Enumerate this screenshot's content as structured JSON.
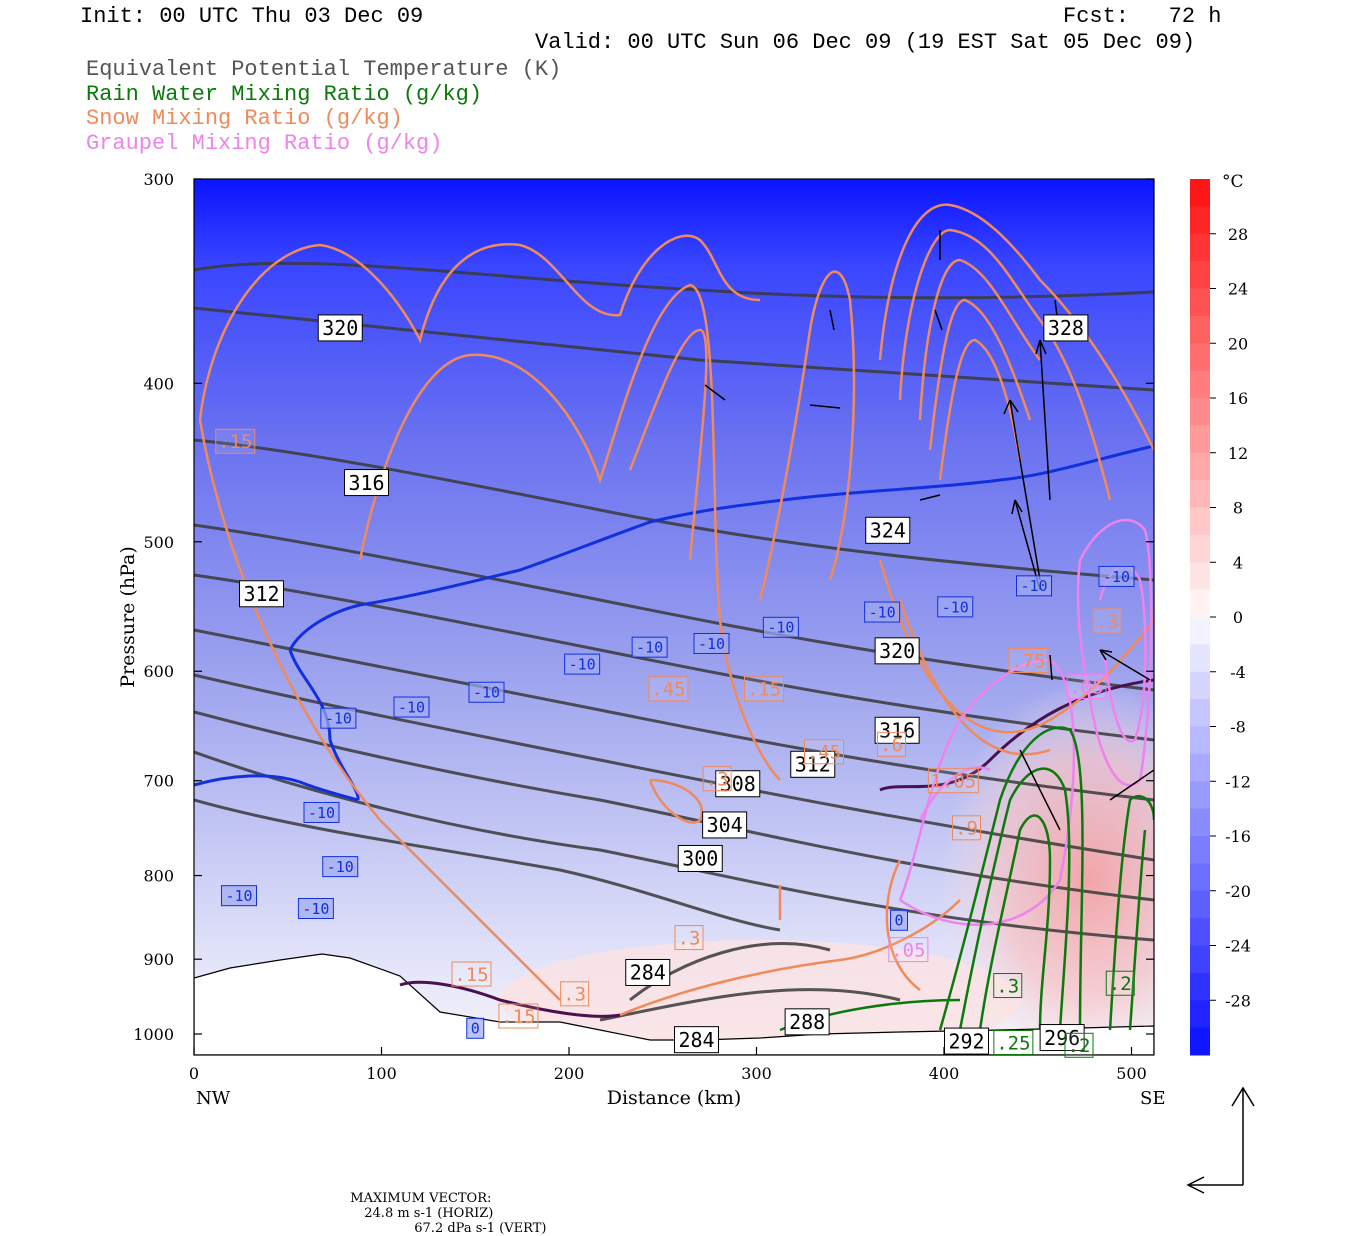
{
  "header": {
    "init": "Init: 00 UTC Thu 03 Dec 09",
    "fcst": "Fcst:   72 h",
    "valid": "Valid: 00 UTC Sun 06 Dec 09 (19 EST Sat 05 Dec 09)",
    "fields": [
      {
        "text": "Equivalent Potential Temperature (K)",
        "color": "#555555"
      },
      {
        "text": "Rain Water Mixing Ratio (g/kg)",
        "color": "#0a7a0a"
      },
      {
        "text": "Snow Mixing Ratio (g/kg)",
        "color": "#f08a5a"
      },
      {
        "text": "Graupel Mixing Ratio (g/kg)",
        "color": "#ee82ee"
      }
    ]
  },
  "footer": {
    "label": "MAXIMUM VECTOR:",
    "horiz": "24.8 m s-1 (HORIZ)",
    "vert": "67.2 dPa s-1 (VERT)"
  },
  "chart_data": {
    "type": "cross-section",
    "xlabel": "Distance (km)",
    "ylabel": "Pressure (hPa)",
    "xlim": [
      0,
      512
    ],
    "ylim": [
      1030,
      300
    ],
    "yscale": "log",
    "xticks": [
      0,
      100,
      200,
      300,
      400,
      500
    ],
    "yticks": [
      300,
      400,
      500,
      600,
      700,
      800,
      900,
      1000
    ],
    "x_end_labels": {
      "left": "NW",
      "right": "SE"
    },
    "colorbar": {
      "unit": "°C",
      "ticks": [
        28,
        24,
        20,
        16,
        12,
        8,
        4,
        0,
        -4,
        -8,
        -12,
        -16,
        -20,
        -24,
        -28
      ]
    },
    "theta_e_labels": [
      {
        "text": "320",
        "x": 78,
        "p": 370
      },
      {
        "text": "316",
        "x": 92,
        "p": 460
      },
      {
        "text": "312",
        "x": 36,
        "p": 538
      },
      {
        "text": "328",
        "x": 465,
        "p": 370
      },
      {
        "text": "324",
        "x": 370,
        "p": 492
      },
      {
        "text": "320",
        "x": 375,
        "p": 583
      },
      {
        "text": "316",
        "x": 375,
        "p": 652
      },
      {
        "text": "312",
        "x": 330,
        "p": 684
      },
      {
        "text": "308",
        "x": 290,
        "p": 703
      },
      {
        "text": "304",
        "x": 283,
        "p": 745
      },
      {
        "text": "300",
        "x": 270,
        "p": 781
      },
      {
        "text": "284",
        "x": 242,
        "p": 917
      },
      {
        "text": "288",
        "x": 327,
        "p": 983
      },
      {
        "text": "284",
        "x": 268,
        "p": 1008
      },
      {
        "text": "292",
        "x": 412,
        "p": 1010
      },
      {
        "text": "296",
        "x": 463,
        "p": 1005
      }
    ],
    "temp_labels": [
      {
        "text": "-10",
        "x": 116,
        "p": 631
      },
      {
        "text": "-10",
        "x": 156,
        "p": 618
      },
      {
        "text": "-10",
        "x": 207,
        "p": 594
      },
      {
        "text": "-10",
        "x": 243,
        "p": 580
      },
      {
        "text": "-10",
        "x": 276,
        "p": 577
      },
      {
        "text": "-10",
        "x": 313,
        "p": 564
      },
      {
        "text": "-10",
        "x": 367,
        "p": 552
      },
      {
        "text": "-10",
        "x": 406,
        "p": 548
      },
      {
        "text": "-10",
        "x": 448,
        "p": 532
      },
      {
        "text": "-10",
        "x": 492,
        "p": 525
      },
      {
        "text": "-10",
        "x": 77,
        "p": 641
      },
      {
        "text": "-10",
        "x": 68,
        "p": 732
      },
      {
        "text": "-10",
        "x": 78,
        "p": 790
      },
      {
        "text": "-10",
        "x": 24,
        "p": 823
      },
      {
        "text": "-10",
        "x": 65,
        "p": 838
      },
      {
        "text": "0",
        "x": 150,
        "p": 992
      },
      {
        "text": "0",
        "x": 376,
        "p": 852
      }
    ],
    "snow_labels": [
      {
        "text": ".15",
        "x": 22,
        "p": 434
      },
      {
        "text": ".45",
        "x": 253,
        "p": 615
      },
      {
        "text": ".15",
        "x": 304,
        "p": 615
      },
      {
        "text": ".45",
        "x": 336,
        "p": 672
      },
      {
        "text": ".6",
        "x": 372,
        "p": 665
      },
      {
        "text": "1.05",
        "x": 405,
        "p": 700
      },
      {
        "text": ".3",
        "x": 279,
        "p": 698
      },
      {
        "text": ".9",
        "x": 412,
        "p": 748
      },
      {
        "text": ".3",
        "x": 264,
        "p": 873
      },
      {
        "text": ".15",
        "x": 148,
        "p": 919
      },
      {
        "text": ".3",
        "x": 203,
        "p": 945
      },
      {
        "text": ".15",
        "x": 173,
        "p": 975
      },
      {
        "text": ".75",
        "x": 445,
        "p": 591
      },
      {
        "text": ".3",
        "x": 487,
        "p": 559
      }
    ],
    "graupel_labels": [
      {
        "text": ".05",
        "x": 381,
        "p": 888
      },
      {
        "text": ".05",
        "x": 476,
        "p": 613
      }
    ],
    "rain_labels": [
      {
        "text": ".3",
        "x": 434,
        "p": 934
      },
      {
        "text": ".2",
        "x": 494,
        "p": 931
      },
      {
        "text": ".25",
        "x": 437,
        "p": 1012
      },
      {
        "text": ".2",
        "x": 472,
        "p": 1016
      }
    ],
    "maximum_vector": {
      "horiz": 24.8,
      "horiz_unit": "m s-1",
      "vert": 67.2,
      "vert_unit": "dPa s-1"
    }
  }
}
